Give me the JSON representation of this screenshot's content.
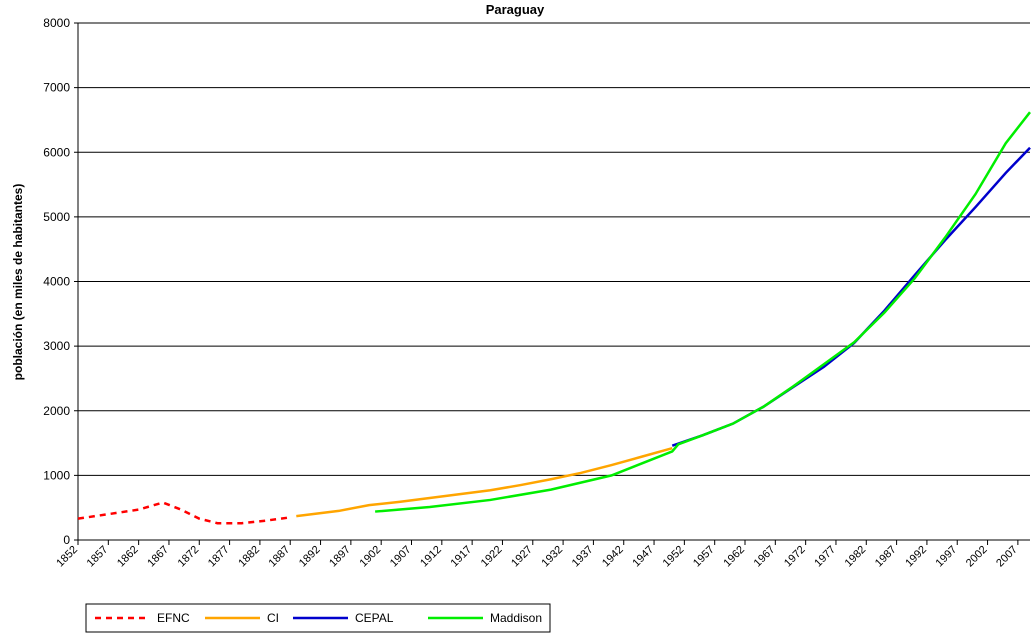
{
  "chart_data": {
    "type": "line",
    "title": "Paraguay",
    "y_label": "población (en miles de habitantes)",
    "xlim": [
      1852,
      2009
    ],
    "ylim": [
      0,
      8000
    ],
    "yticks": [
      0,
      1000,
      2000,
      3000,
      4000,
      5000,
      6000,
      7000,
      8000
    ],
    "xticks": [
      1852,
      1857,
      1862,
      1867,
      1872,
      1877,
      1882,
      1887,
      1892,
      1897,
      1902,
      1907,
      1912,
      1917,
      1922,
      1927,
      1932,
      1937,
      1942,
      1947,
      1952,
      1957,
      1962,
      1967,
      1972,
      1977,
      1982,
      1987,
      1992,
      1997,
      2002,
      2007
    ],
    "grid": true,
    "legend": "bottom",
    "series": [
      {
        "name": "EFNC",
        "color": "#ff0000",
        "dashed": true,
        "x": [
          1852,
          1857,
          1862,
          1866,
          1869,
          1872,
          1875,
          1879,
          1883,
          1887
        ],
        "values": [
          330,
          400,
          470,
          580,
          470,
          330,
          260,
          260,
          300,
          350
        ]
      },
      {
        "name": "CI",
        "color": "#ffa500",
        "dashed": false,
        "x": [
          1888,
          1895,
          1900,
          1905,
          1910,
          1915,
          1920,
          1925,
          1930,
          1935,
          1940,
          1945,
          1950
        ],
        "values": [
          370,
          450,
          540,
          590,
          650,
          710,
          770,
          850,
          940,
          1040,
          1160,
          1290,
          1420
        ]
      },
      {
        "name": "CEPAL",
        "color": "#0000cc",
        "dashed": false,
        "x": [
          1950,
          1955,
          1960,
          1965,
          1970,
          1975,
          1980,
          1985,
          1990,
          1995,
          2000,
          2005,
          2009
        ],
        "values": [
          1460,
          1620,
          1800,
          2060,
          2370,
          2680,
          3050,
          3550,
          4100,
          4640,
          5150,
          5680,
          6070
        ]
      },
      {
        "name": "Maddison",
        "color": "#00ee00",
        "dashed": false,
        "x": [
          1901,
          1910,
          1920,
          1930,
          1940,
          1950,
          1951,
          1955,
          1960,
          1965,
          1970,
          1975,
          1980,
          1985,
          1990,
          1995,
          2000,
          2005,
          2009
        ],
        "values": [
          440,
          510,
          620,
          780,
          1000,
          1370,
          1480,
          1620,
          1800,
          2060,
          2380,
          2720,
          3060,
          3520,
          4050,
          4680,
          5350,
          6140,
          6620
        ]
      }
    ]
  }
}
